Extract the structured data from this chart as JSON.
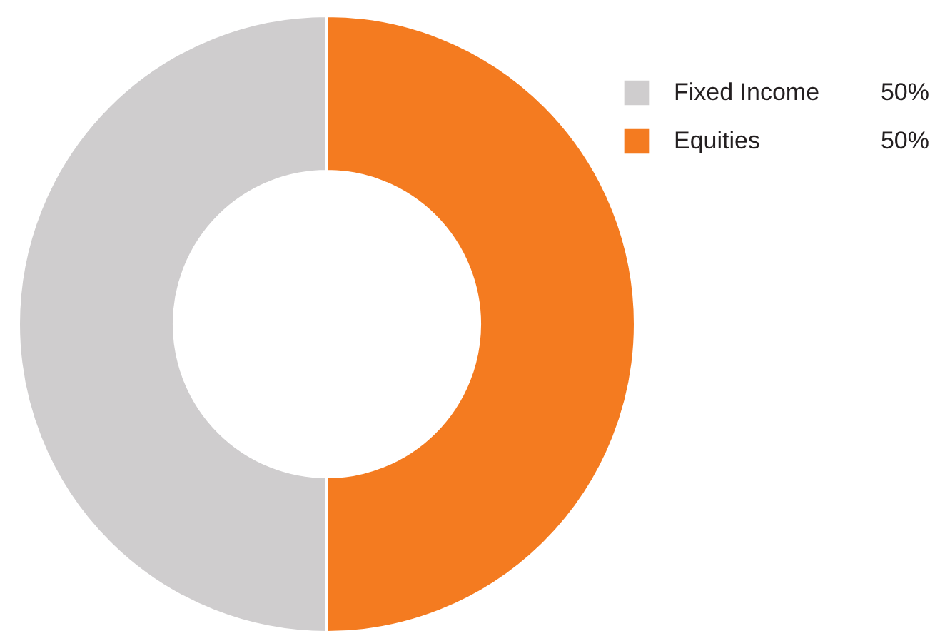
{
  "chart_data": {
    "type": "donut",
    "categories": [
      "Fixed Income",
      "Equities"
    ],
    "values": [
      50,
      50
    ],
    "colors": [
      "#cfcdce",
      "#f47b20"
    ],
    "value_labels": [
      "50%",
      "50%"
    ],
    "legend": "top right"
  }
}
